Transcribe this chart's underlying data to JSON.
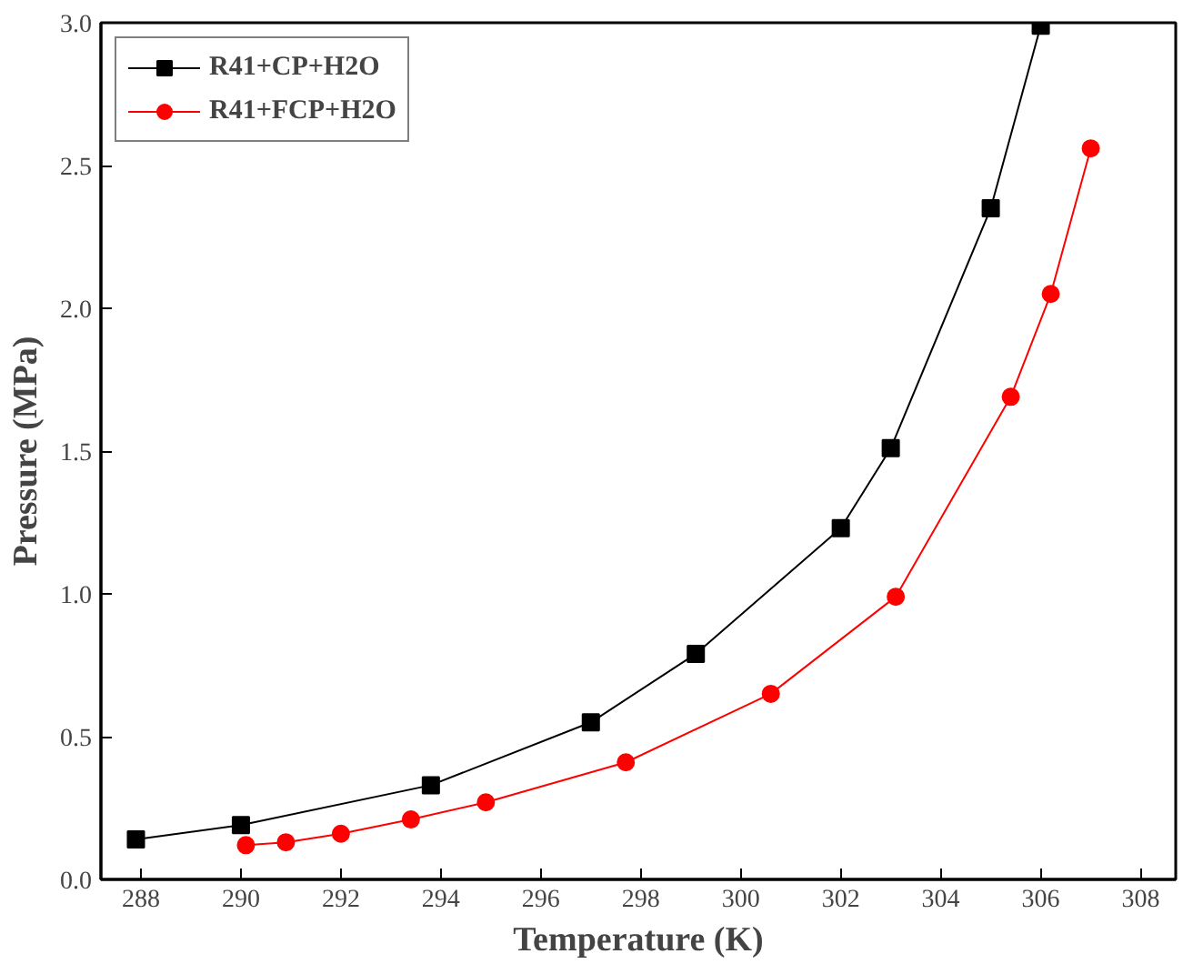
{
  "chart_data": {
    "type": "line",
    "xlabel": "Temperature (K)",
    "ylabel": "Pressure (MPa)",
    "xlim": [
      287.2,
      308.7
    ],
    "ylim": [
      0,
      3.0
    ],
    "xticks": [
      288,
      290,
      292,
      294,
      296,
      298,
      300,
      302,
      304,
      306,
      308
    ],
    "yticks": [
      {
        "value": 0,
        "label": "0.0"
      },
      {
        "value": 0.5,
        "label": "0.5"
      },
      {
        "value": 1,
        "label": "1.0"
      },
      {
        "value": 1.5,
        "label": "1.5"
      },
      {
        "value": 2,
        "label": "2.0"
      },
      {
        "value": 2.5,
        "label": "2.5"
      },
      {
        "value": 3,
        "label": "3.0"
      }
    ],
    "grid": false,
    "legend": "top left",
    "series": [
      {
        "name": "R41+CP+H2O",
        "color": "#000000",
        "marker": "square",
        "x": [
          287.9,
          290.0,
          293.8,
          297.0,
          299.1,
          302.0,
          303.0,
          305.0,
          306.0
        ],
        "values": [
          0.14,
          0.19,
          0.33,
          0.55,
          0.79,
          1.23,
          1.51,
          2.35,
          2.99
        ]
      },
      {
        "name": "R41+FCP+H2O",
        "color": "#ff0000",
        "marker": "circle",
        "x": [
          290.1,
          290.9,
          292.0,
          293.4,
          294.9,
          297.7,
          300.6,
          303.1,
          305.4,
          306.2,
          307.0
        ],
        "values": [
          0.12,
          0.13,
          0.16,
          0.21,
          0.27,
          0.41,
          0.65,
          0.99,
          1.69,
          2.05,
          2.56
        ]
      }
    ]
  }
}
